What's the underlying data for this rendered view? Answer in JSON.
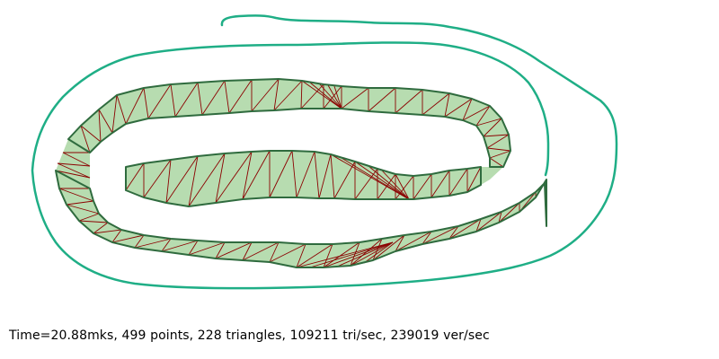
{
  "colors": {
    "background": "#ffffff",
    "outline_curve": "#1fae86",
    "polygon_fill": "#b7dcb0",
    "polygon_border": "#2f6b3e",
    "triangle_edges": "#8b0000",
    "status_text": "#000000"
  },
  "status": {
    "text": "Time=20.88mks, 499 points, 228 triangles, 109211 tri/sec, 239019 ver/sec",
    "time": "20.88mks",
    "points": 499,
    "triangles": 228,
    "tri_per_sec": 109211,
    "ver_per_sec": 239019
  }
}
